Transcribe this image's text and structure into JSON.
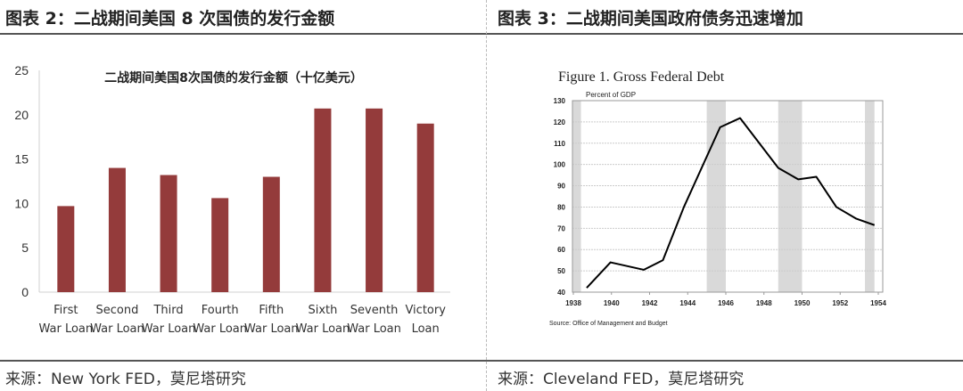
{
  "left_panel": {
    "heading": "图表 2：二战期间美国 8 次国债的发行金额",
    "source": "来源：New York FED，莫尼塔研究"
  },
  "right_panel": {
    "heading": "图表 3：二战期间美国政府债务迅速增加",
    "source": "来源：Cleveland FED，莫尼塔研究"
  },
  "chart_data": [
    {
      "type": "bar",
      "title": "二战期间美国8次国债的发行金额（十亿美元）",
      "categories": [
        [
          "First",
          "War Loan"
        ],
        [
          "Second",
          "War Loan"
        ],
        [
          "Third",
          "War Loan"
        ],
        [
          "Fourth",
          "War Loan"
        ],
        [
          "Fifth",
          "War Loan"
        ],
        [
          "Sixth",
          "War Loan"
        ],
        [
          "Seventh",
          "War Loan"
        ],
        [
          "Victory",
          "Loan"
        ]
      ],
      "values": [
        9.7,
        14.0,
        13.2,
        10.6,
        13.0,
        20.7,
        20.7,
        19.0
      ],
      "ylim": [
        0,
        25
      ],
      "yticks": [
        0,
        5,
        10,
        15,
        20,
        25
      ],
      "color": "#943b3b",
      "grid": false
    },
    {
      "type": "line",
      "title": "Figure 1.  Gross Federal Debt",
      "ylabel": "Percent of GDP",
      "source": "Source: Office of Management and Budget",
      "x": [
        1938.7,
        1939.95,
        1941.7,
        1942.7,
        1943.8,
        1945.7,
        1946.75,
        1948.75,
        1949.8,
        1950.75,
        1951.8,
        1952.85,
        1953.8
      ],
      "y": [
        42,
        54,
        50.5,
        55,
        80,
        117.5,
        121.8,
        98.4,
        93,
        94.2,
        80,
        74.5,
        71.5
      ],
      "xlim": [
        1938,
        1954.4
      ],
      "ylim": [
        40,
        130
      ],
      "xticks": [
        1938,
        1940,
        1942,
        1944,
        1946,
        1948,
        1950,
        1952,
        1954
      ],
      "yticks": [
        40,
        50,
        60,
        70,
        80,
        90,
        100,
        110,
        120,
        130
      ],
      "shaded_periods": [
        [
          1937.9,
          1938.4
        ],
        [
          1945.0,
          1946.0
        ],
        [
          1948.75,
          1950.0
        ],
        [
          1953.3,
          1953.8
        ]
      ],
      "grid": true,
      "line_color": "#000000",
      "shade_color": "#d9d9d9"
    }
  ]
}
